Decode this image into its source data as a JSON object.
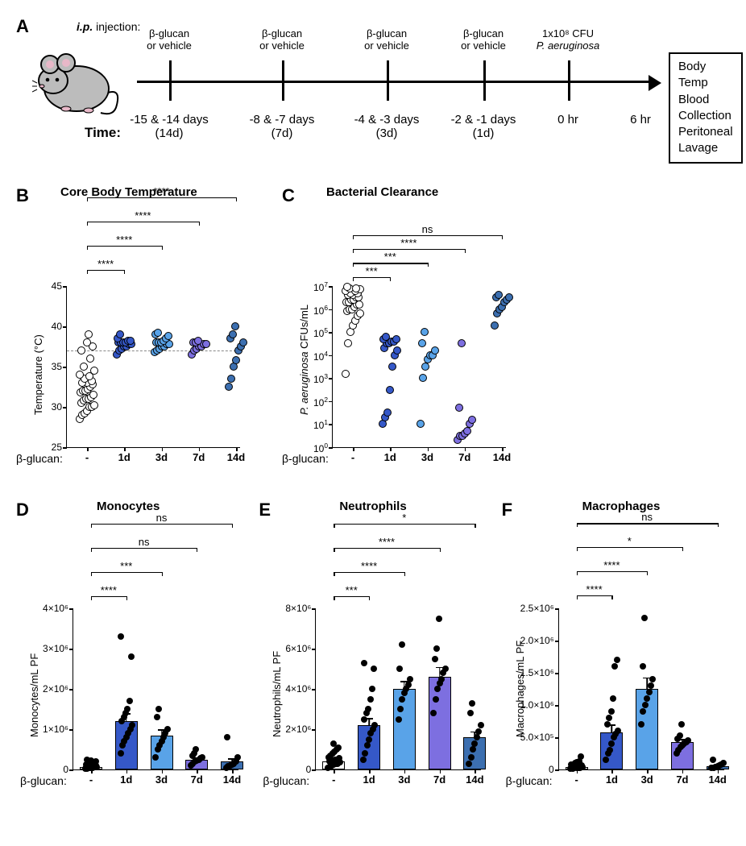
{
  "colors": {
    "group_minus": "#ffffff",
    "group_1d": "#3558c8",
    "group_3d": "#59a3e8",
    "group_7d": "#7d6fe0",
    "group_14d": "#3c6fb0",
    "point_border": "#000000",
    "bar_border": "#000000"
  },
  "panelA": {
    "label": "A",
    "ip_prefix": "i.p.",
    "ip_text": " injection:",
    "time_label": "Time:",
    "injections": [
      {
        "top": "β-glucan\nor vehicle",
        "bottom": "-15 & -14 days\n(14d)",
        "x": 40
      },
      {
        "top": "β-glucan\nor vehicle",
        "bottom": "-8 & -7 days\n(7d)",
        "x": 180
      },
      {
        "top": "β-glucan\nor vehicle",
        "bottom": "-4 & -3 days\n(3d)",
        "x": 310
      },
      {
        "top": "β-glucan\nor vehicle",
        "bottom": "-2 & -1 days\n(1d)",
        "x": 430
      },
      {
        "top": "1x10⁸ CFU\nP. aeruginosa",
        "bottom": "0 hr",
        "x": 535,
        "ital_bottom_line": true
      },
      {
        "top": "",
        "bottom": "6 hr",
        "x": 625,
        "no_tick": true
      }
    ],
    "outcomes": [
      "Body Temp",
      "Blood Collection",
      "Peritoneal Lavage"
    ]
  },
  "panelB": {
    "label": "B",
    "title": "Core Body Temperature",
    "ylabel": "Temperature (°C)",
    "xgroup_label": "β-glucan:",
    "y_min": 25,
    "y_max": 45,
    "y_ticks": [
      25,
      30,
      35,
      40,
      45
    ],
    "ref_line": 37,
    "groups": [
      "-",
      "1d",
      "3d",
      "7d",
      "14d"
    ],
    "sig": [
      {
        "to": 1,
        "label": "****",
        "y": 47
      },
      {
        "to": 2,
        "label": "****",
        "y": 50
      },
      {
        "to": 3,
        "label": "****",
        "y": 53
      },
      {
        "to": 4,
        "label": "****",
        "y": 56
      }
    ],
    "data": {
      "-": [
        28.5,
        29,
        29.2,
        29.5,
        30,
        30,
        30.2,
        30.5,
        30.8,
        31,
        31,
        31.2,
        31.5,
        31.8,
        32,
        32,
        32.2,
        32.5,
        32.8,
        33,
        33,
        33.2,
        33.5,
        33.8,
        34,
        34.5,
        35,
        36,
        37,
        37.5,
        38,
        39
      ],
      "1d": [
        36.5,
        37,
        37.2,
        37.5,
        37.5,
        37.8,
        37.8,
        38,
        38,
        38,
        38,
        38.2,
        38.2,
        38.5,
        39
      ],
      "3d": [
        36.8,
        37,
        37.2,
        37.5,
        37.5,
        37.8,
        37.8,
        38,
        38,
        38,
        38.2,
        38.5,
        38.8,
        39,
        39.2
      ],
      "7d": [
        36.5,
        37,
        37.2,
        37.5,
        37.5,
        37.8,
        37.8,
        38,
        38,
        38.2
      ],
      "14d": [
        32.5,
        33.5,
        35,
        35.8,
        37,
        37.5,
        38,
        38.5,
        39,
        40
      ]
    }
  },
  "panelC": {
    "label": "C",
    "title": "Bacterial Clearance",
    "ylabel": "P. aeruginosa CFUs/mL",
    "ylabel_italic_prefix": "P. aeruginosa",
    "ylabel_rest": " CFUs/mL",
    "xgroup_label": "β-glucan:",
    "log": true,
    "y_ticks_exp": [
      0,
      1,
      2,
      3,
      4,
      5,
      6,
      7
    ],
    "groups": [
      "-",
      "1d",
      "3d",
      "7d",
      "14d"
    ],
    "sig": [
      {
        "to": 1,
        "label": "***",
        "y": 7.4
      },
      {
        "to": 2,
        "label": "***",
        "y": 8.0
      },
      {
        "to": 3,
        "label": "****",
        "y": 8.6
      },
      {
        "to": 4,
        "label": "ns",
        "y": 9.2
      }
    ],
    "data_log10": {
      "-": [
        3.2,
        4.5,
        5,
        5.3,
        5.5,
        5.7,
        5.8,
        5.9,
        6,
        6,
        6.1,
        6.2,
        6.2,
        6.3,
        6.3,
        6.4,
        6.4,
        6.5,
        6.5,
        6.6,
        6.6,
        6.7,
        6.7,
        6.8,
        6.8,
        6.85,
        6.9,
        6.9,
        6.95
      ],
      "1d": [
        1,
        1.3,
        1.5,
        2.5,
        3.5,
        4,
        4.2,
        4.3,
        4.5,
        4.5,
        4.6,
        4.6,
        4.7,
        4.7,
        4.8
      ],
      "3d": [
        1,
        3,
        3.5,
        3.8,
        4,
        4,
        4.2,
        4.5,
        5
      ],
      "7d": [
        0.3,
        0.5,
        0.5,
        0.6,
        0.7,
        1,
        1.2,
        1.7,
        4.5
      ],
      "14d": [
        5.3,
        5.8,
        6,
        6.1,
        6.3,
        6.4,
        6.5,
        6.5,
        6.6
      ]
    }
  },
  "bar_common": {
    "xgroup_label": "β-glucan:",
    "groups": [
      "-",
      "1d",
      "3d",
      "7d",
      "14d"
    ]
  },
  "panelD": {
    "label": "D",
    "title": "Monocytes",
    "ylabel": "Monocytes/mL PF",
    "y_max": 4000000.0,
    "y_ticks": [
      0,
      1000000.0,
      2000000.0,
      3000000.0,
      4000000.0
    ],
    "y_tick_labels": [
      "0",
      "1×10⁶",
      "2×10⁶",
      "3×10⁶",
      "4×10⁶"
    ],
    "bars": [
      {
        "g": "-",
        "mean": 60000.0,
        "sem": 20000.0,
        "pts": [
          20000.0,
          30000.0,
          40000.0,
          50000.0,
          50000.0,
          60000.0,
          60000.0,
          70000.0,
          80000.0,
          80000.0,
          90000.0,
          100000.0,
          100000.0,
          120000.0,
          130000.0,
          150000.0,
          160000.0,
          180000.0,
          200000.0,
          220000.0,
          250000.0
        ]
      },
      {
        "g": "1d",
        "mean": 1200000.0,
        "sem": 200000.0,
        "pts": [
          400000.0,
          600000.0,
          700000.0,
          800000.0,
          900000.0,
          1000000.0,
          1100000.0,
          1200000.0,
          1300000.0,
          1400000.0,
          1500000.0,
          1700000.0,
          2800000.0,
          3300000.0
        ]
      },
      {
        "g": "3d",
        "mean": 850000.0,
        "sem": 150000.0,
        "pts": [
          300000.0,
          500000.0,
          600000.0,
          700000.0,
          800000.0,
          900000.0,
          1000000.0,
          1300000.0,
          1500000.0
        ]
      },
      {
        "g": "7d",
        "mean": 250000.0,
        "sem": 50000.0,
        "pts": [
          100000.0,
          150000.0,
          200000.0,
          220000.0,
          250000.0,
          280000.0,
          300000.0,
          350000.0,
          400000.0,
          500000.0
        ]
      },
      {
        "g": "14d",
        "mean": 200000.0,
        "sem": 80000.0,
        "pts": [
          50000.0,
          80000.0,
          100000.0,
          120000.0,
          150000.0,
          200000.0,
          300000.0,
          800000.0
        ]
      }
    ],
    "sig": [
      {
        "to": 1,
        "label": "****",
        "y": 4300000.0
      },
      {
        "to": 2,
        "label": "***",
        "y": 4900000.0
      },
      {
        "to": 3,
        "label": "ns",
        "y": 5500000.0
      },
      {
        "to": 4,
        "label": "ns",
        "y": 6100000.0
      }
    ]
  },
  "panelE": {
    "label": "E",
    "title": "Neutrophils",
    "ylabel": "Neutrophils/mL PF",
    "y_max": 8000000.0,
    "y_ticks": [
      0,
      2000000.0,
      4000000.0,
      6000000.0,
      8000000.0
    ],
    "y_tick_labels": [
      "0",
      "2×10⁶",
      "4×10⁶",
      "6×10⁶",
      "8×10⁶"
    ],
    "bars": [
      {
        "g": "-",
        "mean": 400000.0,
        "sem": 100000.0,
        "pts": [
          100000.0,
          150000.0,
          200000.0,
          250000.0,
          300000.0,
          300000.0,
          350000.0,
          400000.0,
          400000.0,
          450000.0,
          500000.0,
          500000.0,
          550000.0,
          600000.0,
          700000.0,
          800000.0,
          900000.0,
          1000000.0,
          1100000.0,
          1300000.0
        ]
      },
      {
        "g": "1d",
        "mean": 2200000.0,
        "sem": 350000.0,
        "pts": [
          500000.0,
          800000.0,
          1200000.0,
          1500000.0,
          1800000.0,
          2000000.0,
          2200000.0,
          2500000.0,
          2800000.0,
          3000000.0,
          3500000.0,
          4000000.0,
          5000000.0,
          5300000.0
        ]
      },
      {
        "g": "3d",
        "mean": 4000000.0,
        "sem": 400000.0,
        "pts": [
          2500000.0,
          3000000.0,
          3500000.0,
          3800000.0,
          4000000.0,
          4200000.0,
          4500000.0,
          5000000.0,
          6200000.0
        ]
      },
      {
        "g": "7d",
        "mean": 4600000.0,
        "sem": 500000.0,
        "pts": [
          2800000.0,
          3500000.0,
          4000000.0,
          4300000.0,
          4500000.0,
          4800000.0,
          5000000.0,
          5500000.0,
          6000000.0,
          7500000.0
        ]
      },
      {
        "g": "14d",
        "mean": 1600000.0,
        "sem": 300000.0,
        "pts": [
          300000.0,
          600000.0,
          1000000.0,
          1300000.0,
          1600000.0,
          1900000.0,
          2200000.0,
          2800000.0,
          3300000.0
        ]
      }
    ],
    "sig": [
      {
        "to": 1,
        "label": "***",
        "y": 8600000.0
      },
      {
        "to": 2,
        "label": "****",
        "y": 9800000.0
      },
      {
        "to": 3,
        "label": "****",
        "y": 11000000.0
      },
      {
        "to": 4,
        "label": "*",
        "y": 12200000.0
      }
    ]
  },
  "panelF": {
    "label": "F",
    "title": "Macrophages",
    "ylabel": "Macrophages/mL PF",
    "y_max": 2500000.0,
    "y_ticks": [
      0,
      500000.0,
      1000000.0,
      1500000.0,
      2000000.0,
      2500000.0
    ],
    "y_tick_labels": [
      "0",
      "5.0×10⁵",
      "1.0×10⁶",
      "1.5×10⁶",
      "2.0×10⁶",
      "2.5×10⁶"
    ],
    "bars": [
      {
        "g": "-",
        "mean": 40000.0,
        "sem": 10000.0,
        "pts": [
          10000.0,
          15000.0,
          20000.0,
          25000.0,
          30000.0,
          30000.0,
          35000.0,
          40000.0,
          40000.0,
          45000.0,
          50000.0,
          50000.0,
          60000.0,
          70000.0,
          80000.0,
          100000.0,
          110000.0,
          120000.0,
          200000.0
        ]
      },
      {
        "g": "1d",
        "mean": 580000.0,
        "sem": 120000.0,
        "pts": [
          150000.0,
          250000.0,
          300000.0,
          400000.0,
          500000.0,
          550000.0,
          600000.0,
          700000.0,
          800000.0,
          900000.0,
          1100000.0,
          1600000.0,
          1700000.0
        ]
      },
      {
        "g": "3d",
        "mean": 1250000.0,
        "sem": 180000.0,
        "pts": [
          700000.0,
          900000.0,
          1000000.0,
          1100000.0,
          1200000.0,
          1300000.0,
          1400000.0,
          1600000.0,
          2350000.0
        ]
      },
      {
        "g": "7d",
        "mean": 420000.0,
        "sem": 50000.0,
        "pts": [
          250000.0,
          300000.0,
          350000.0,
          380000.0,
          400000.0,
          420000.0,
          450000.0,
          480000.0,
          520000.0,
          700000.0
        ]
      },
      {
        "g": "14d",
        "mean": 50000.0,
        "sem": 20000.0,
        "pts": [
          20000.0,
          30000.0,
          40000.0,
          50000.0,
          60000.0,
          80000.0,
          100000.0,
          150000.0
        ]
      }
    ],
    "sig": [
      {
        "to": 1,
        "label": "****",
        "y": 2700000.0
      },
      {
        "to": 2,
        "label": "****",
        "y": 3080000.0
      },
      {
        "to": 3,
        "label": "*",
        "y": 3450000.0
      },
      {
        "to": 4,
        "label": "ns",
        "y": 3820000.0
      }
    ]
  }
}
